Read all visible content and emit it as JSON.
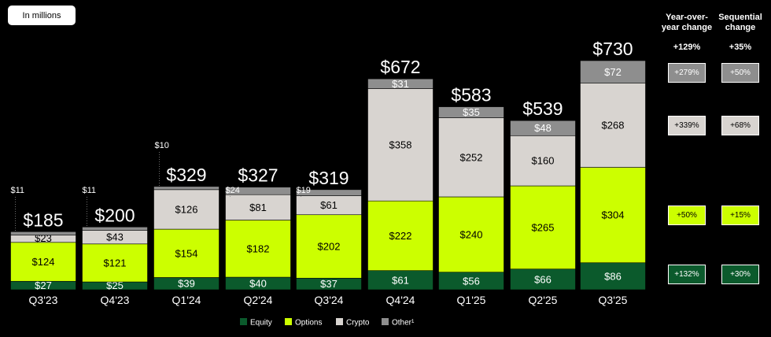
{
  "unit_label": "In millions",
  "colors": {
    "equity": "#0b5a2c",
    "options": "#ccff00",
    "crypto": "#d8d4d0",
    "other": "#8e8e8e",
    "background": "#000000"
  },
  "side_panel": {
    "yoy_header": "Year-over-year change",
    "seq_header": "Sequential change",
    "yoy_total": "+129%",
    "seq_total": "+35%",
    "rows": [
      {
        "segment": "other",
        "yoy": "+279%",
        "seq": "+50%"
      },
      {
        "segment": "crypto",
        "yoy": "+339%",
        "seq": "+68%"
      },
      {
        "segment": "options",
        "yoy": "+50%",
        "seq": "+15%"
      },
      {
        "segment": "equity",
        "yoy": "+132%",
        "seq": "+30%"
      }
    ]
  },
  "chart_data": {
    "type": "bar",
    "stacked": true,
    "title": "",
    "ylabel": "In millions",
    "ylim": [
      0,
      730
    ],
    "categories": [
      "Q3'23",
      "Q4'23",
      "Q1'24",
      "Q2'24",
      "Q3'24",
      "Q4'24",
      "Q1'25",
      "Q2'25",
      "Q3'25"
    ],
    "totals": [
      185,
      200,
      329,
      327,
      319,
      672,
      583,
      539,
      730
    ],
    "total_labels": [
      "$185",
      "$200",
      "$329",
      "$327",
      "$319",
      "$672",
      "$583",
      "$539",
      "$730"
    ],
    "series": [
      {
        "name": "Equity",
        "key": "equity",
        "values": [
          27,
          25,
          39,
          40,
          37,
          61,
          56,
          66,
          86
        ],
        "labels": [
          "$27",
          "$25",
          "$39",
          "$40",
          "$37",
          "$61",
          "$56",
          "$66",
          "$86"
        ]
      },
      {
        "name": "Options",
        "key": "options",
        "values": [
          124,
          121,
          154,
          182,
          202,
          222,
          240,
          265,
          304
        ],
        "labels": [
          "$124",
          "$121",
          "$154",
          "$182",
          "$202",
          "$222",
          "$240",
          "$265",
          "$304"
        ]
      },
      {
        "name": "Crypto",
        "key": "crypto",
        "values": [
          23,
          43,
          126,
          81,
          61,
          358,
          252,
          160,
          268
        ],
        "labels": [
          "$23",
          "$43",
          "$126",
          "$81",
          "$61",
          "$358",
          "$252",
          "$160",
          "$268"
        ]
      },
      {
        "name": "Other¹",
        "key": "other",
        "values": [
          11,
          11,
          10,
          24,
          19,
          31,
          35,
          48,
          72
        ],
        "labels": [
          "$11",
          "$11",
          "$10",
          "$24",
          "$19",
          "$31",
          "$35",
          "$48",
          "$72"
        ]
      }
    ],
    "legend": [
      "Equity",
      "Options",
      "Crypto",
      "Other¹"
    ],
    "legend_position": "bottom"
  }
}
